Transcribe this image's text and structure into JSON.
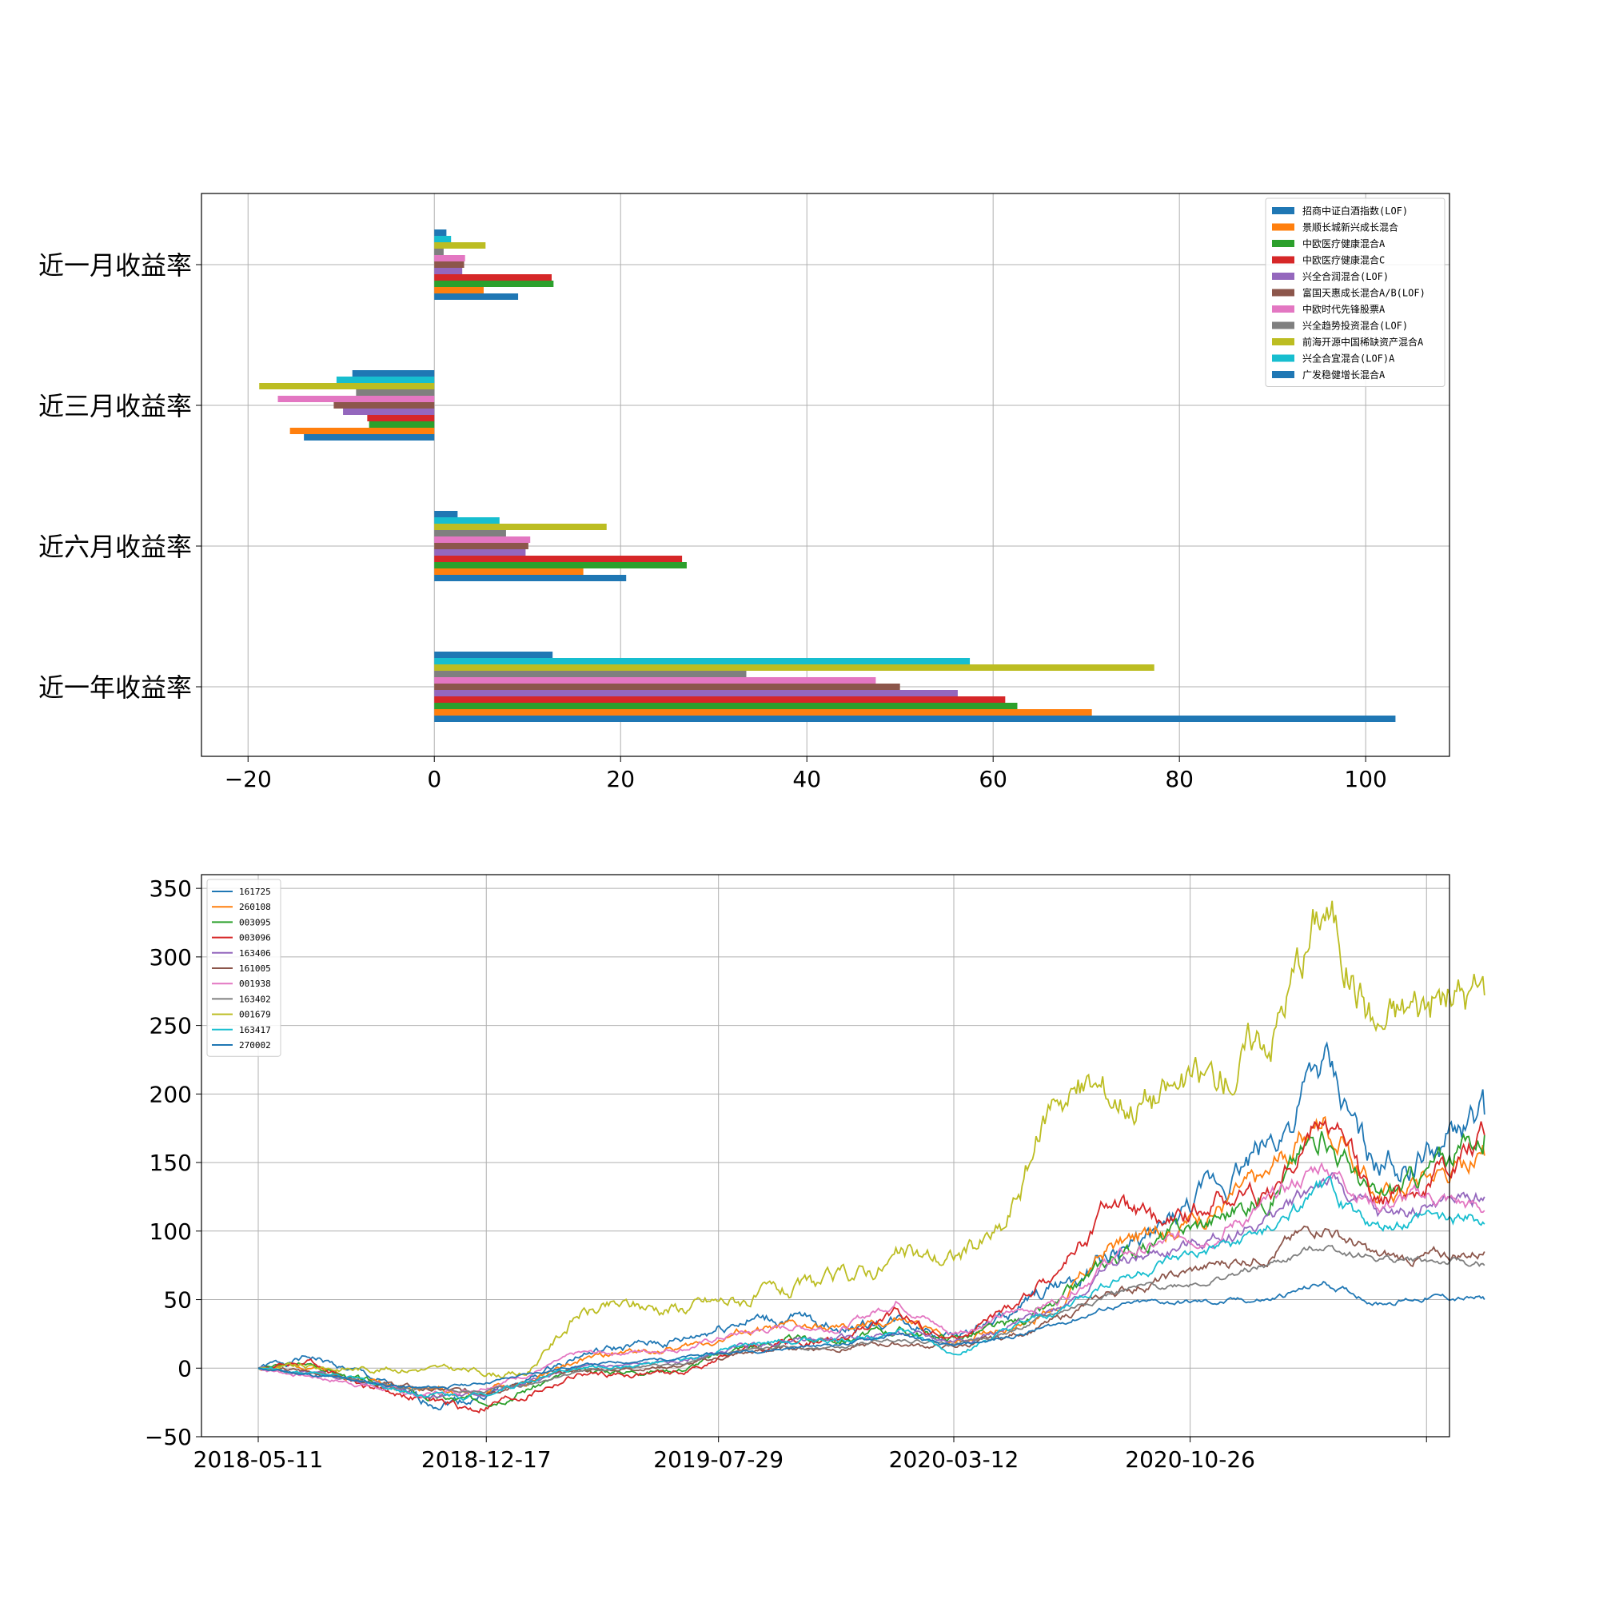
{
  "chart_data": [
    {
      "type": "bar",
      "orientation": "horizontal",
      "grid": true,
      "legend_position": "top-right",
      "xlim": [
        -25,
        109
      ],
      "x_ticks": [
        -20,
        0,
        20,
        40,
        60,
        80,
        100
      ],
      "categories": [
        "近一年收益率",
        "近六月收益率",
        "近三月收益率",
        "近一月收益率"
      ],
      "series": [
        {
          "name": "招商中证白酒指数(LOF)",
          "color": "#1f77b4",
          "values": [
            103.2,
            20.6,
            -14.0,
            9.0
          ]
        },
        {
          "name": "景顺长城新兴成长混合",
          "color": "#ff7f0e",
          "values": [
            70.6,
            16.0,
            -15.5,
            5.3
          ]
        },
        {
          "name": "中欧医疗健康混合A",
          "color": "#2ca02c",
          "values": [
            62.6,
            27.1,
            -7.0,
            12.8
          ]
        },
        {
          "name": "中欧医疗健康混合C",
          "color": "#d62728",
          "values": [
            61.3,
            26.6,
            -7.2,
            12.6
          ]
        },
        {
          "name": "兴全合润混合(LOF)",
          "color": "#9467bd",
          "values": [
            56.2,
            9.8,
            -9.8,
            3.0
          ]
        },
        {
          "name": "富国天惠成长混合A/B(LOF)",
          "color": "#8c564b",
          "values": [
            50.0,
            10.1,
            -10.8,
            3.2
          ]
        },
        {
          "name": "中欧时代先锋股票A",
          "color": "#e377c2",
          "values": [
            47.4,
            10.3,
            -16.8,
            3.3
          ]
        },
        {
          "name": "兴全趋势投资混合(LOF)",
          "color": "#7f7f7f",
          "values": [
            33.5,
            7.7,
            -8.4,
            1.0
          ]
        },
        {
          "name": "前海开源中国稀缺资产混合A",
          "color": "#bcbd22",
          "values": [
            77.3,
            18.5,
            -18.8,
            5.5
          ]
        },
        {
          "name": "兴全合宜混合(LOF)A",
          "color": "#17becf",
          "values": [
            57.5,
            7.0,
            -10.5,
            1.8
          ]
        },
        {
          "name": "广发稳健增长混合A",
          "color": "#1f77b4",
          "values": [
            12.7,
            2.5,
            -8.8,
            1.3
          ]
        }
      ]
    },
    {
      "type": "line",
      "grid": true,
      "legend_position": "top-left",
      "ylim": [
        -50,
        360
      ],
      "y_ticks": [
        -50,
        0,
        50,
        100,
        150,
        200,
        250,
        300,
        350
      ],
      "x_start": "2018-05-11",
      "x_ticks": [
        "2018-05-11",
        "2018-12-17",
        "2019-07-29",
        "2020-03-12",
        "2020-10-26"
      ],
      "series": [
        {
          "name": "161725",
          "color": "#1f77b4",
          "values": [
            0,
            8,
            -5,
            -25,
            -22,
            -10,
            10,
            15,
            20,
            35,
            35,
            30,
            35,
            25,
            35,
            60,
            80,
            100,
            130,
            165,
            215,
            145,
            155,
            185
          ],
          "noise": 5,
          "seed": 1
        },
        {
          "name": "260108",
          "color": "#ff7f0e",
          "values": [
            0,
            2,
            -8,
            -15,
            -18,
            -12,
            5,
            12,
            15,
            25,
            30,
            28,
            35,
            20,
            30,
            45,
            90,
            100,
            120,
            140,
            185,
            125,
            145,
            155
          ],
          "noise": 4,
          "seed": 2
        },
        {
          "name": "003095",
          "color": "#2ca02c",
          "values": [
            0,
            3,
            -10,
            -20,
            -25,
            -15,
            -2,
            -2,
            0,
            15,
            20,
            22,
            28,
            22,
            30,
            45,
            80,
            95,
            110,
            130,
            175,
            120,
            145,
            170
          ],
          "noise": 4,
          "seed": 3
        },
        {
          "name": "003096",
          "color": "#d62728",
          "values": [
            0,
            5,
            -12,
            -22,
            -30,
            -20,
            -5,
            -5,
            -3,
            12,
            18,
            20,
            40,
            20,
            40,
            70,
            120,
            100,
            125,
            130,
            185,
            120,
            140,
            170
          ],
          "noise": 4,
          "seed": 4
        },
        {
          "name": "163406",
          "color": "#9467bd",
          "values": [
            0,
            -5,
            -10,
            -18,
            -20,
            -12,
            0,
            2,
            5,
            15,
            20,
            22,
            25,
            20,
            28,
            45,
            75,
            85,
            95,
            110,
            140,
            110,
            120,
            125
          ],
          "noise": 3,
          "seed": 5
        },
        {
          "name": "161005",
          "color": "#8c564b",
          "values": [
            0,
            -3,
            -8,
            -15,
            -18,
            -10,
            -2,
            0,
            2,
            10,
            15,
            15,
            18,
            15,
            22,
            35,
            55,
            65,
            75,
            85,
            105,
            80,
            80,
            85
          ],
          "noise": 3,
          "seed": 6
        },
        {
          "name": "001938",
          "color": "#e377c2",
          "values": [
            0,
            -6,
            -12,
            -20,
            -15,
            -5,
            10,
            12,
            15,
            25,
            30,
            30,
            50,
            25,
            38,
            50,
            80,
            90,
            100,
            120,
            150,
            120,
            125,
            115
          ],
          "noise": 3,
          "seed": 7
        },
        {
          "name": "163402",
          "color": "#7f7f7f",
          "values": [
            0,
            -4,
            -10,
            -16,
            -18,
            -12,
            -2,
            0,
            3,
            12,
            15,
            15,
            22,
            18,
            25,
            40,
            55,
            60,
            65,
            75,
            90,
            80,
            78,
            75
          ],
          "noise": 2,
          "seed": 8
        },
        {
          "name": "001679",
          "color": "#bcbd22",
          "values": [
            0,
            0,
            0,
            0,
            -2,
            -5,
            40,
            45,
            45,
            50,
            55,
            65,
            80,
            80,
            100,
            205,
            200,
            200,
            210,
            250,
            340,
            250,
            270,
            272
          ],
          "noise": 5,
          "seed": 9
        },
        {
          "name": "163417",
          "color": "#17becf",
          "values": [
            0,
            -3,
            -10,
            -18,
            -20,
            -10,
            0,
            2,
            5,
            15,
            20,
            20,
            30,
            10,
            25,
            40,
            65,
            75,
            85,
            100,
            130,
            100,
            110,
            105
          ],
          "noise": 3,
          "seed": 10
        },
        {
          "name": "270002",
          "color": "#1f77b4",
          "values": [
            0,
            -5,
            -10,
            -15,
            -12,
            -5,
            2,
            5,
            8,
            12,
            15,
            18,
            25,
            15,
            22,
            32,
            45,
            48,
            48,
            50,
            62,
            48,
            52,
            50
          ],
          "noise": 2,
          "seed": 11
        }
      ]
    }
  ]
}
